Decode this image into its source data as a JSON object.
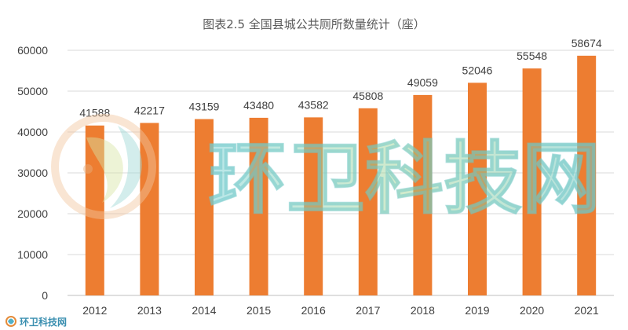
{
  "chart_data": {
    "type": "bar",
    "title": "图表2.5 全国县城公共厕所数量统计（座）",
    "categories": [
      "2012",
      "2013",
      "2014",
      "2015",
      "2016",
      "2017",
      "2018",
      "2019",
      "2020",
      "2021"
    ],
    "values": [
      41588,
      42217,
      43159,
      43480,
      43582,
      45808,
      49059,
      52046,
      55548,
      58674
    ],
    "ylim": [
      0,
      60000
    ],
    "yticks": [
      0,
      10000,
      20000,
      30000,
      40000,
      50000,
      60000
    ],
    "grid": true,
    "legend": "none",
    "bar_color": "#ED7D31",
    "grid_color": "#D9D9D9"
  },
  "watermark": {
    "text": "环卫科技网",
    "corner_text": "环卫科技网"
  }
}
